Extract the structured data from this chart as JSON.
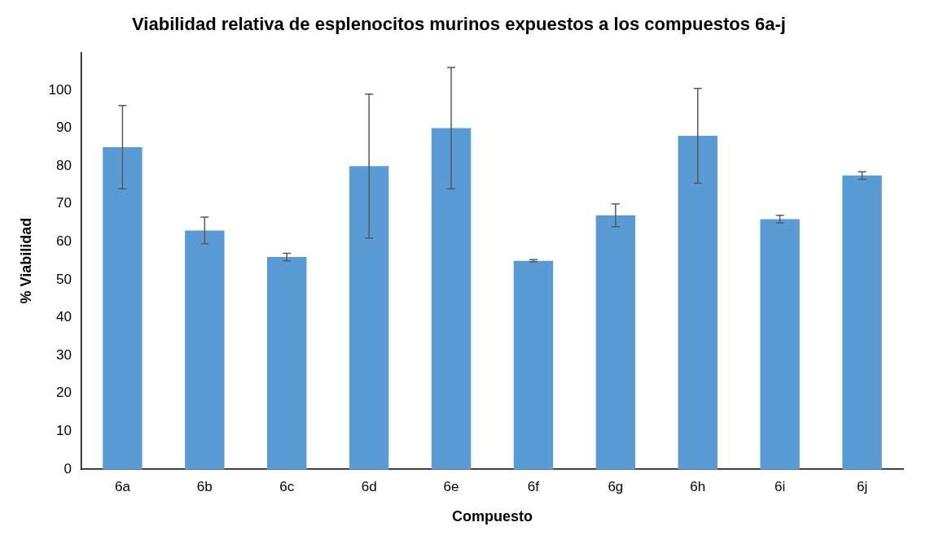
{
  "chart_data": {
    "type": "bar",
    "title": "Viabilidad relativa de esplenocitos murinos expuestos a los compuestos 6a-j",
    "xlabel": "Compuesto",
    "ylabel": "% Viabilidad",
    "categories": [
      "6a",
      "6b",
      "6c",
      "6d",
      "6e",
      "6f",
      "6g",
      "6h",
      "6i",
      "6j"
    ],
    "values": [
      85,
      63,
      56,
      80,
      90,
      55,
      67,
      88,
      66,
      77.5
    ],
    "errors": [
      11,
      3.5,
      1,
      19,
      16,
      0.3,
      3,
      12.5,
      1,
      1
    ],
    "color": "#5b9bd5",
    "ylim": [
      0,
      110
    ],
    "yticks": [
      0,
      10,
      20,
      30,
      40,
      50,
      60,
      70,
      80,
      90,
      100
    ],
    "grid": false,
    "legend": false
  }
}
